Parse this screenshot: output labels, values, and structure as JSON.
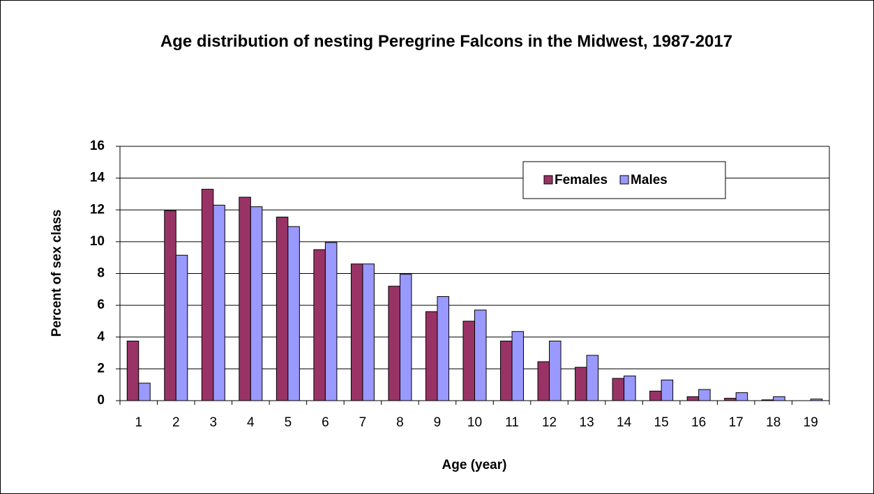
{
  "chart_data": {
    "type": "bar",
    "title": "Age distribution of nesting Peregrine Falcons in the Midwest, 1987-2017",
    "x_label": "Age (year)",
    "y_label": "Percent of sex class",
    "categories": [
      "1",
      "2",
      "3",
      "4",
      "5",
      "6",
      "7",
      "8",
      "9",
      "10",
      "11",
      "12",
      "13",
      "14",
      "15",
      "16",
      "17",
      "18",
      "19"
    ],
    "series": [
      {
        "name": "Females",
        "color": "#993366",
        "values": [
          3.75,
          11.95,
          13.3,
          12.8,
          11.55,
          9.5,
          8.6,
          7.2,
          5.6,
          5.0,
          3.75,
          2.45,
          2.1,
          1.4,
          0.6,
          0.25,
          0.15,
          0.05,
          0
        ]
      },
      {
        "name": "Males",
        "color": "#9999ff",
        "values": [
          1.1,
          9.15,
          12.3,
          12.2,
          10.95,
          9.95,
          8.6,
          7.95,
          6.55,
          5.7,
          4.35,
          3.75,
          2.85,
          1.55,
          1.3,
          0.7,
          0.5,
          0.25,
          0.1
        ]
      }
    ],
    "ylim": [
      0,
      16
    ],
    "yticks": [
      0,
      2,
      4,
      6,
      8,
      10,
      12,
      14,
      16
    ],
    "grid": true,
    "legend": "top-right"
  }
}
